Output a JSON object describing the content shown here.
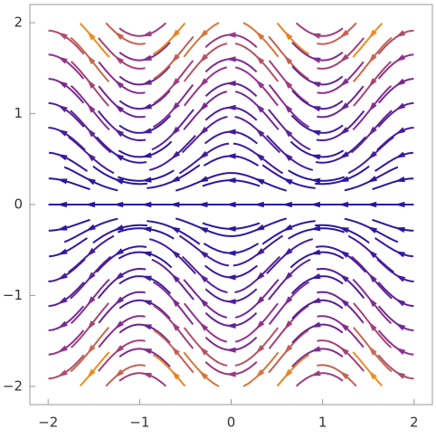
{
  "chart_data": {
    "type": "stream",
    "xlim": [
      -2.2,
      2.2
    ],
    "ylim": [
      -2.2,
      2.2
    ],
    "xticks": [
      {
        "value": -2,
        "label": "−2"
      },
      {
        "value": -1,
        "label": "−1"
      },
      0,
      1,
      2
    ],
    "yticks": [
      {
        "value": -2,
        "label": "−2"
      },
      {
        "value": -1,
        "label": "−1"
      },
      0,
      1,
      2
    ],
    "frame": true
  }
}
